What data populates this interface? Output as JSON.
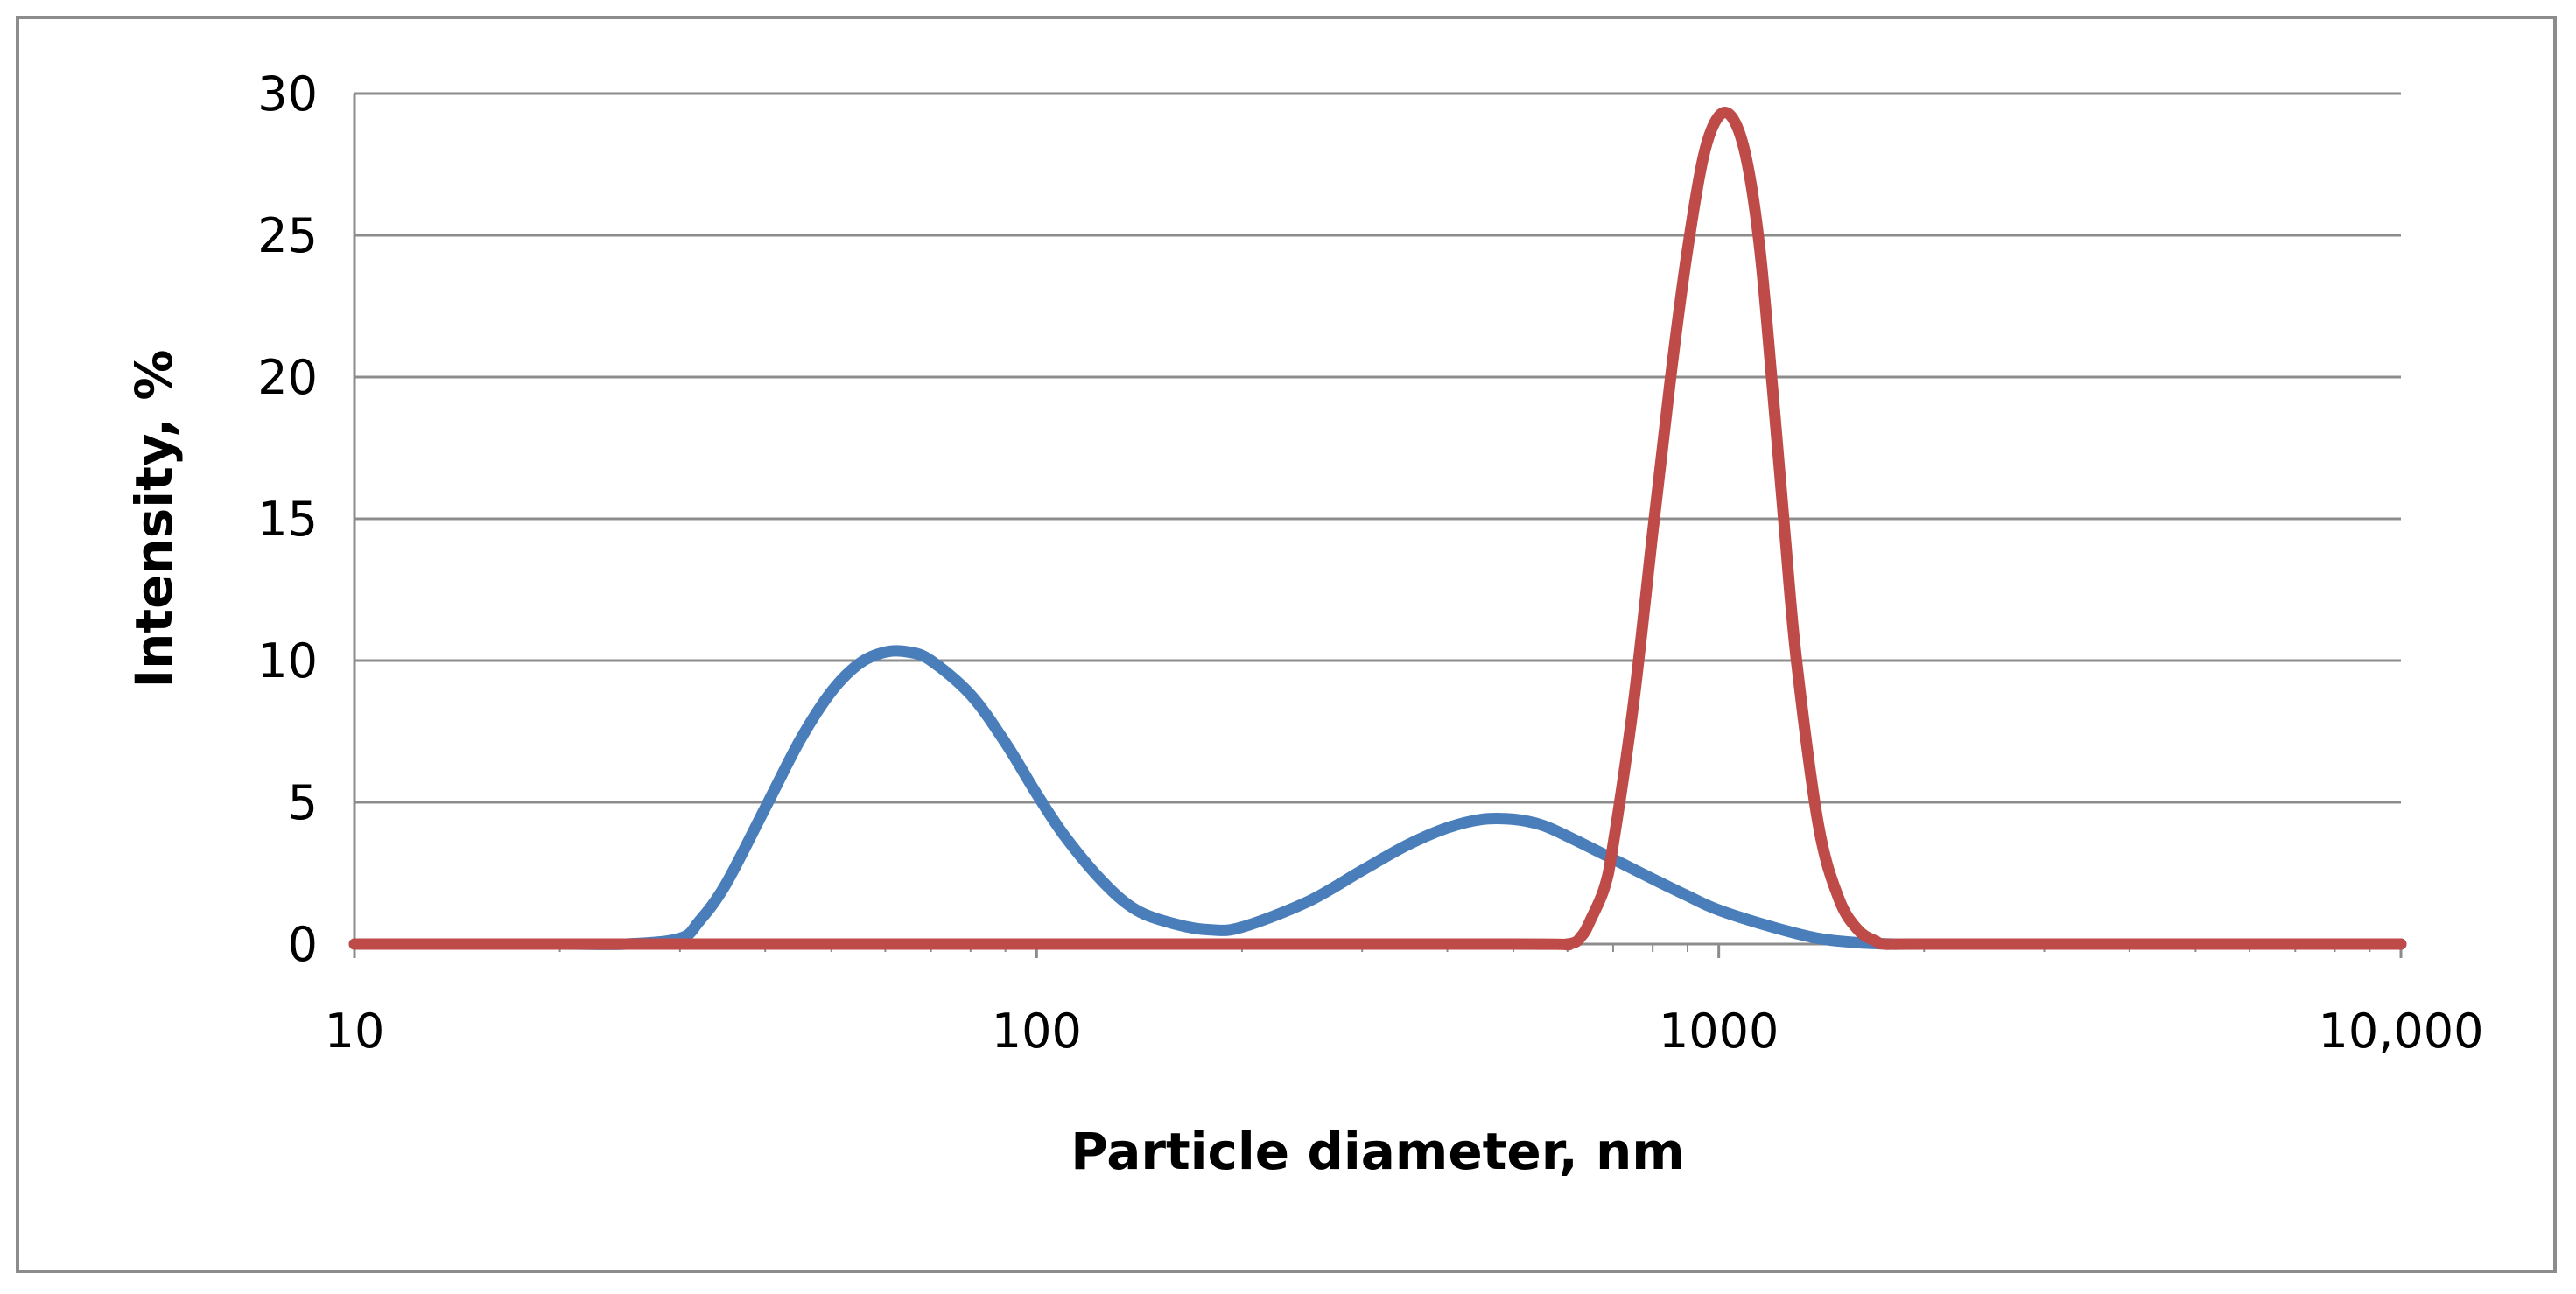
{
  "chart_data": {
    "type": "line",
    "title": "",
    "xlabel": "Particle diameter, nm",
    "ylabel": "Intensity, %",
    "x_scale": "log",
    "xlim": [
      10,
      10000
    ],
    "ylim": [
      0,
      30
    ],
    "x_ticks": [
      10,
      100,
      1000,
      10000
    ],
    "x_tick_labels": [
      "10",
      "100",
      "1000",
      "10,000"
    ],
    "y_ticks": [
      0,
      5,
      10,
      15,
      20,
      25,
      30
    ],
    "y_tick_labels": [
      "0",
      "5",
      "10",
      "15",
      "20",
      "25",
      "30"
    ],
    "grid": true,
    "legend": "none",
    "series": [
      {
        "color": "#4a7ebb",
        "points": [
          [
            10,
            0
          ],
          [
            20,
            0
          ],
          [
            25,
            0
          ],
          [
            30,
            0.2
          ],
          [
            32,
            0.8
          ],
          [
            35,
            2.1
          ],
          [
            40,
            4.8
          ],
          [
            45,
            7.2
          ],
          [
            50,
            8.9
          ],
          [
            55,
            9.9
          ],
          [
            60,
            10.3
          ],
          [
            65,
            10.3
          ],
          [
            70,
            10.0
          ],
          [
            80,
            8.8
          ],
          [
            90,
            7.1
          ],
          [
            100,
            5.3
          ],
          [
            110,
            3.8
          ],
          [
            125,
            2.2
          ],
          [
            140,
            1.2
          ],
          [
            160,
            0.7
          ],
          [
            180,
            0.5
          ],
          [
            200,
            0.6
          ],
          [
            250,
            1.5
          ],
          [
            300,
            2.6
          ],
          [
            350,
            3.5
          ],
          [
            400,
            4.1
          ],
          [
            450,
            4.4
          ],
          [
            500,
            4.4
          ],
          [
            550,
            4.2
          ],
          [
            600,
            3.8
          ],
          [
            700,
            3.0
          ],
          [
            800,
            2.3
          ],
          [
            900,
            1.7
          ],
          [
            1000,
            1.2
          ],
          [
            1200,
            0.6
          ],
          [
            1400,
            0.2
          ],
          [
            1600,
            0.05
          ],
          [
            1800,
            0
          ],
          [
            2000,
            0
          ],
          [
            5000,
            0
          ],
          [
            10000,
            0
          ]
        ]
      },
      {
        "color": "#be4b48",
        "points": [
          [
            10,
            0
          ],
          [
            100,
            0
          ],
          [
            500,
            0
          ],
          [
            600,
            0
          ],
          [
            630,
            0.3
          ],
          [
            650,
            0.9
          ],
          [
            680,
            2.0
          ],
          [
            700,
            3.5
          ],
          [
            750,
            8.5
          ],
          [
            800,
            14.5
          ],
          [
            850,
            20.0
          ],
          [
            900,
            24.5
          ],
          [
            950,
            27.8
          ],
          [
            1000,
            29.2
          ],
          [
            1050,
            29.1
          ],
          [
            1100,
            27.6
          ],
          [
            1150,
            24.4
          ],
          [
            1200,
            19.5
          ],
          [
            1250,
            14.5
          ],
          [
            1300,
            10.0
          ],
          [
            1400,
            4.2
          ],
          [
            1500,
            1.6
          ],
          [
            1600,
            0.5
          ],
          [
            1700,
            0.1
          ],
          [
            1750,
            0
          ],
          [
            2000,
            0
          ],
          [
            5000,
            0
          ],
          [
            10000,
            0
          ]
        ]
      }
    ]
  }
}
